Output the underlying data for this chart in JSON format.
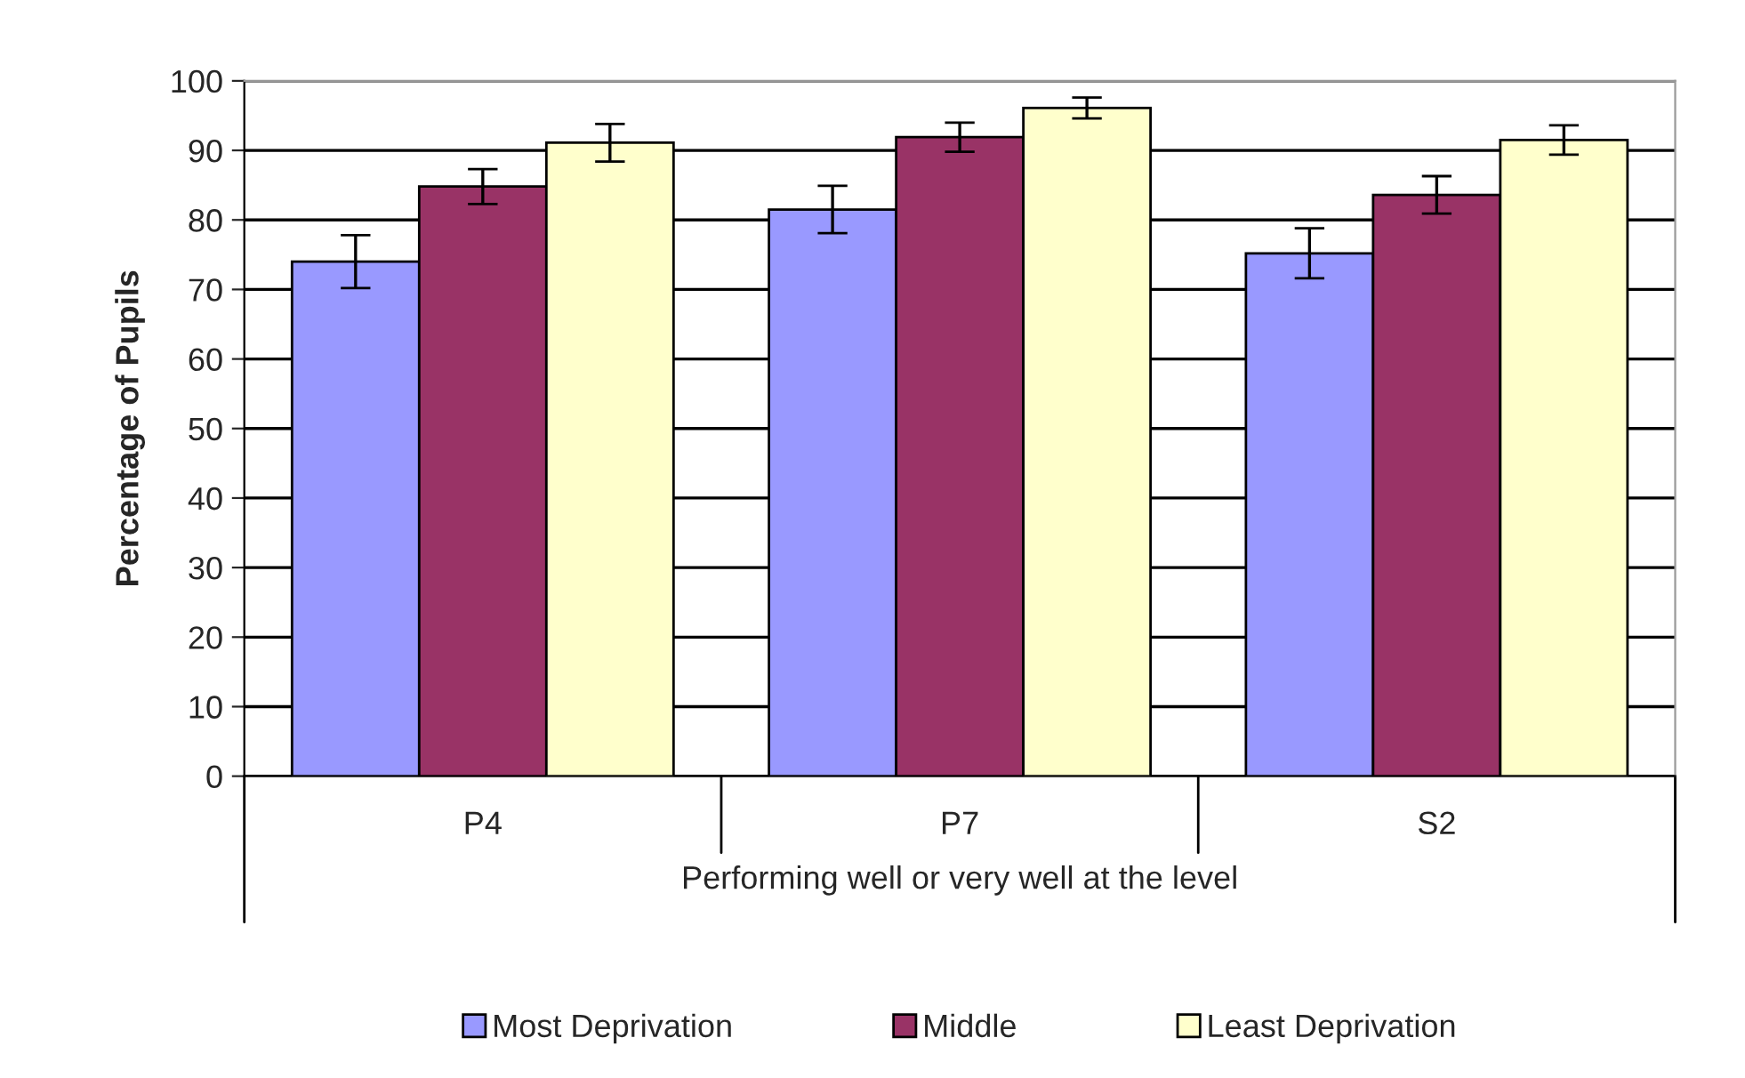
{
  "chart_data": {
    "type": "bar",
    "categories": [
      "P4",
      "P7",
      "S2"
    ],
    "xlabel": "Performing well or very well at the level",
    "ylabel": "Percentage of Pupils",
    "series": [
      {
        "name": "Most Deprivation",
        "color": "#9999ff",
        "values": [
          74.0,
          81.5,
          75.2
        ],
        "errors": [
          3.8,
          3.4,
          3.6
        ]
      },
      {
        "name": "Middle",
        "color": "#993366",
        "values": [
          84.8,
          91.9,
          83.6
        ],
        "errors": [
          2.5,
          2.1,
          2.7
        ]
      },
      {
        "name": "Least Deprivation",
        "color": "#ffffcc",
        "values": [
          91.1,
          96.1,
          91.5
        ],
        "errors": [
          2.7,
          1.5,
          2.1
        ]
      }
    ],
    "ylim": [
      0,
      100
    ],
    "yticks": [
      0,
      10,
      20,
      30,
      40,
      50,
      60,
      70,
      80,
      90,
      100
    ],
    "grid": "y",
    "legend": "bottom"
  }
}
